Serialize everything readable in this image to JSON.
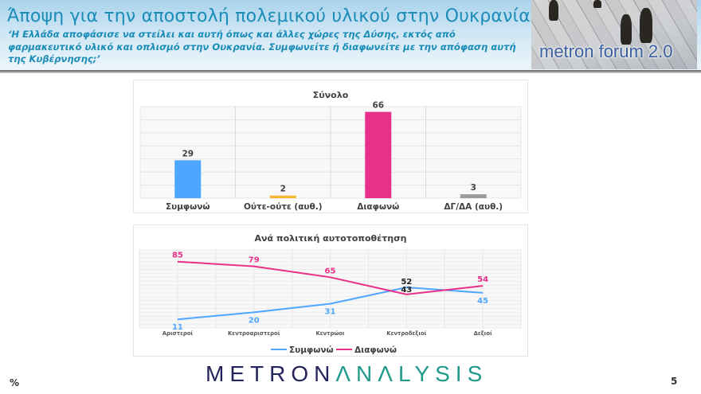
{
  "header": {
    "title": "Άποψη για την αποστολή πολεμικού υλικού στην Ουκρανία",
    "question": "‘Η Ελλάδα αποφάσισε να στείλει και αυτή όπως και άλλες χώρες της Δύσης, εκτός από φαρμακευτικό υλικό και οπλισμό στην Ουκρανία. Συμφωνείτε ή διαφωνείτε με την απόφαση αυτή της Κυβέρνησης;’",
    "brand_label": "metron forum 2.0"
  },
  "colors": {
    "title": "#1a8cb8",
    "agree": "#4da6ff",
    "neither": "#f5b731",
    "disagree": "#e8308a",
    "dk": "#9b9b9b",
    "logo_dark": "#24245c",
    "logo_teal": "#1f9a8a"
  },
  "chart_data": [
    {
      "type": "bar",
      "title": "Σύνολο",
      "categories": [
        "Συμφωνώ",
        "Ούτε-ούτε (αυθ.)",
        "Διαφωνώ",
        "ΔΓ/ΔΑ (αυθ.)"
      ],
      "values": [
        29,
        2,
        66,
        3
      ],
      "bar_colors": [
        "#4da6ff",
        "#f5b731",
        "#e8308a",
        "#9b9b9b"
      ],
      "xlabel": "",
      "ylabel": "",
      "ylim": [
        0,
        70
      ],
      "grid": true,
      "unit": "%"
    },
    {
      "type": "line",
      "title": "Ανά πολιτική αυτοτοποθέτηση",
      "categories": [
        "Αριστεροί",
        "Κεντροαριστεροί",
        "Κεντρώοι",
        "Κεντροδεξιοί",
        "Δεξιοί"
      ],
      "series": [
        {
          "name": "Συμφωνώ",
          "values": [
            11,
            20,
            31,
            52,
            45
          ],
          "color": "#4da6ff"
        },
        {
          "name": "Διαφωνώ",
          "values": [
            85,
            79,
            65,
            43,
            54
          ],
          "color": "#e8308a"
        }
      ],
      "xlabel": "",
      "ylabel": "",
      "ylim": [
        0,
        100
      ],
      "grid": true,
      "legend_position": "bottom",
      "unit": "%"
    }
  ],
  "footer": {
    "unit_symbol": "%",
    "logo_part1": "METRON",
    "logo_part2": "ΛNΛLYSIS",
    "page_number": "5"
  }
}
